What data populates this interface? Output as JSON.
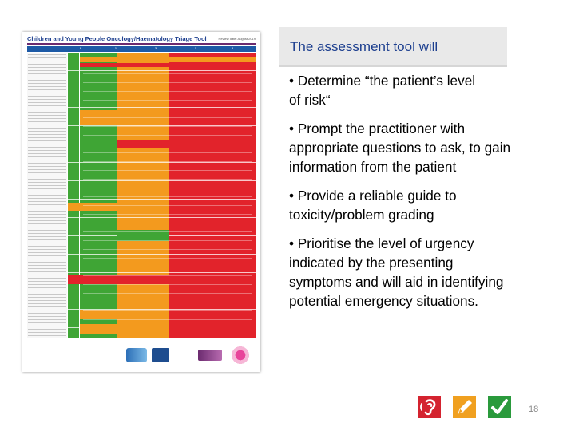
{
  "slide": {
    "title": "The assessment tool will",
    "bullets": [
      "• Determine “the patient’s level\nof risk“",
      "• Prompt the practitioner with\nappropriate questions to ask, to gain\ninformation from the patient",
      "• Provide a reliable guide to\ntoxicity/problem grading",
      "• Prioritise the level of urgency\nindicated by the presenting\nsymptoms and will aid in identifying\npotential emergency situations."
    ],
    "page_number": "18"
  },
  "document": {
    "title": "Children and Young People Oncology/Haematology Triage Tool",
    "review_date": "Review date: August 2019",
    "grade_labels": [
      "0",
      "1",
      "2",
      "3",
      "4"
    ]
  },
  "colors": {
    "title_blue": "#1d3f8f",
    "icon_red": "#d4232f",
    "icon_orange": "#f0a020",
    "icon_green": "#2a9a3c",
    "grid_green": "#3fa535",
    "grid_amber": "#f39a1e",
    "grid_red": "#e2232b"
  },
  "icons": {
    "red": "ear-icon",
    "orange": "pencil-icon",
    "green": "checkmark-icon"
  }
}
